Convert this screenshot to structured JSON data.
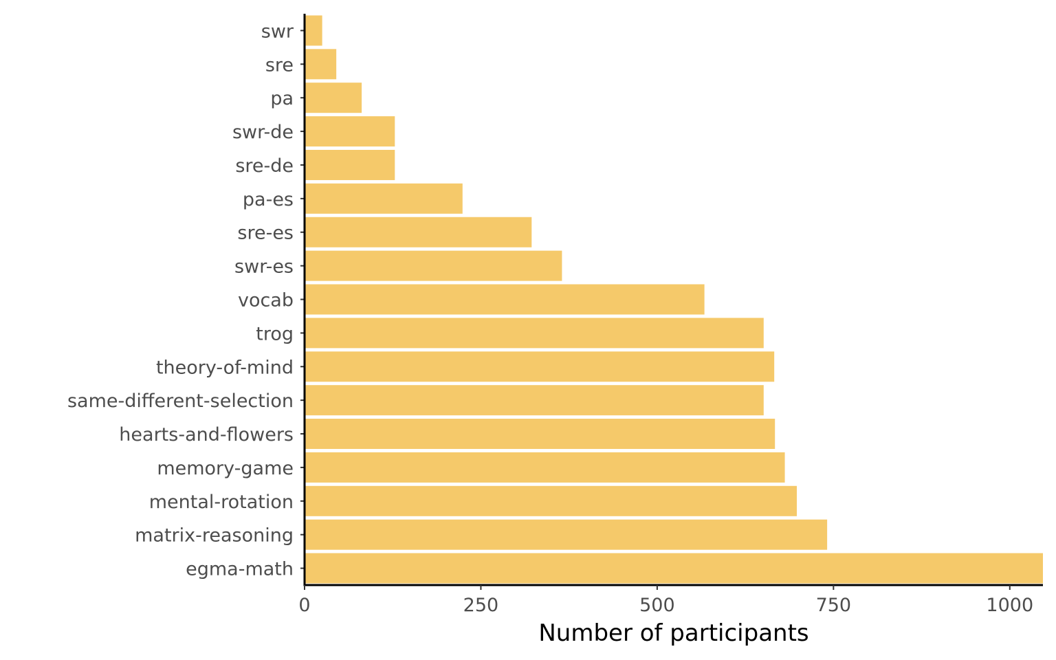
{
  "chart_data": {
    "type": "bar",
    "orientation": "horizontal",
    "title": "",
    "xlabel": "Number of participants",
    "ylabel": "",
    "xlim": [
      0,
      1047
    ],
    "x_ticks": [
      0,
      250,
      500,
      750,
      1000
    ],
    "x_tick_labels": [
      "0",
      "250",
      "500",
      "750",
      "1000"
    ],
    "grid": false,
    "legend": "none",
    "bar_color": "#F5C96A",
    "categories": [
      "swr",
      "sre",
      "pa",
      "swr-de",
      "sre-de",
      "pa-es",
      "sre-es",
      "swr-es",
      "vocab",
      "trog",
      "theory-of-mind",
      "same-different-selection",
      "hearts-and-flowers",
      "memory-game",
      "mental-rotation",
      "matrix-reasoning",
      "egma-math"
    ],
    "values": [
      25,
      45,
      81,
      128,
      128,
      224,
      322,
      365,
      567,
      651,
      666,
      651,
      667,
      681,
      698,
      741,
      1047
    ]
  }
}
